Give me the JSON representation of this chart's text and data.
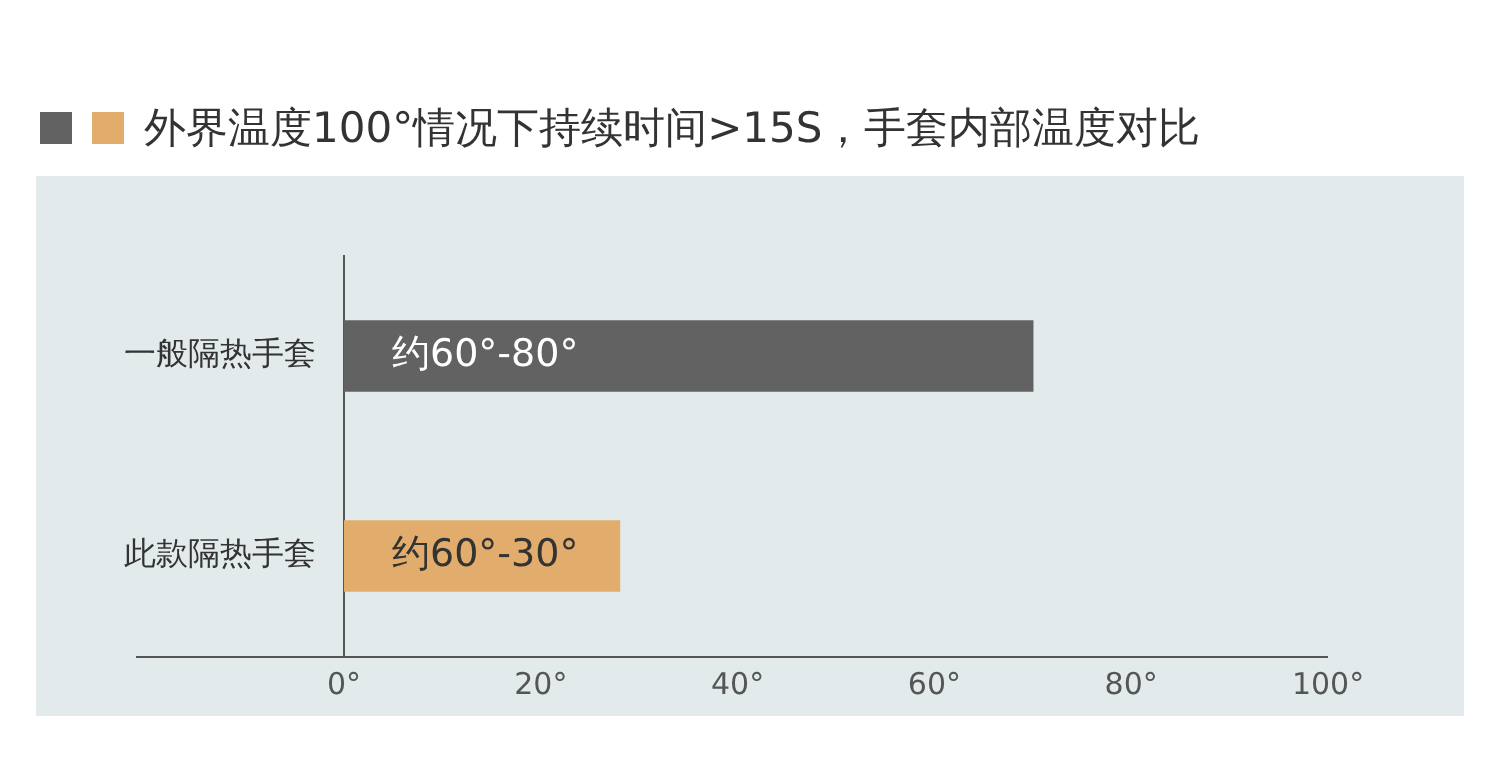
{
  "chart_data": {
    "type": "bar",
    "orientation": "horizontal",
    "title": "外界温度100°情况下持续时间>15S，手套内部温度对比",
    "categories": [
      "一般隔热手套",
      "此款隔热手套"
    ],
    "series": [
      {
        "colors": [
          "#626262",
          "#e2ad6c"
        ],
        "values": [
          70,
          28
        ],
        "value_labels": [
          "约60°-80°",
          "约60°-30°"
        ]
      }
    ],
    "xlim": [
      0,
      100
    ],
    "xticks": [
      {
        "value": 0,
        "label": "0°"
      },
      {
        "value": 20,
        "label": "20°"
      },
      {
        "value": 40,
        "label": "40°"
      },
      {
        "value": 60,
        "label": "60°"
      },
      {
        "value": 80,
        "label": "80°"
      },
      {
        "value": 100,
        "label": "100°"
      }
    ],
    "grid": false,
    "legend": false
  }
}
